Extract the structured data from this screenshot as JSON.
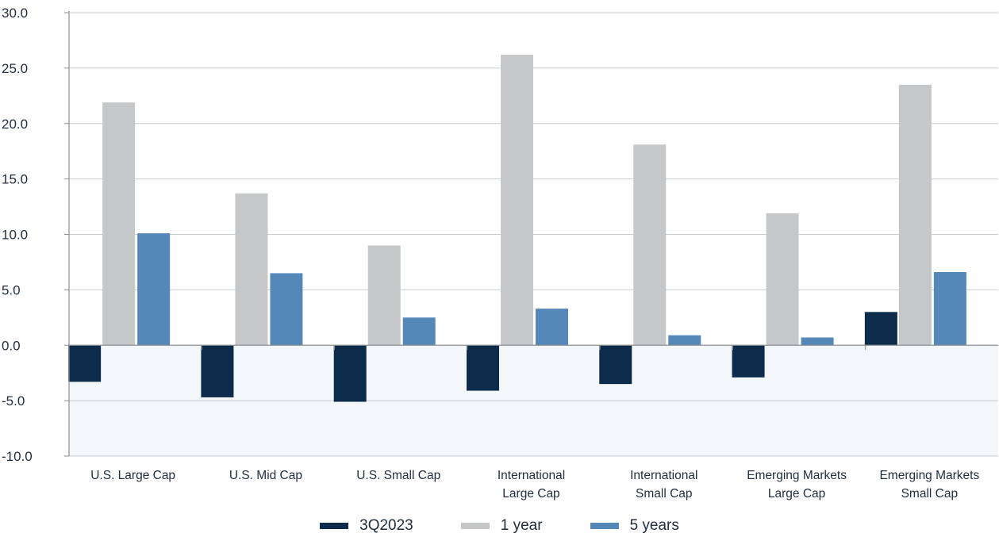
{
  "chart_data": {
    "type": "bar",
    "categories": [
      [
        "U.S. Large Cap"
      ],
      [
        "U.S. Mid Cap"
      ],
      [
        "U.S. Small Cap"
      ],
      [
        "International",
        "Large Cap"
      ],
      [
        "International",
        "Small Cap"
      ],
      [
        "Emerging Markets",
        "Large Cap"
      ],
      [
        "Emerging Markets",
        "Small Cap"
      ]
    ],
    "series": [
      {
        "name": "3Q2023",
        "color": "#0d2b4a",
        "values": [
          -3.3,
          -4.7,
          -5.1,
          -4.1,
          -3.5,
          -2.9,
          3.0
        ]
      },
      {
        "name": "1 year",
        "color": "#c6c7c9",
        "values": [
          21.9,
          13.7,
          9.0,
          26.2,
          18.1,
          11.9,
          23.5
        ]
      },
      {
        "name": "5 years",
        "color": "#5588b8",
        "values": [
          10.1,
          6.5,
          2.5,
          3.3,
          0.9,
          0.7,
          6.6
        ]
      }
    ],
    "yticks": [
      "30.0",
      "25.0",
      "20.0",
      "15.0",
      "10.0",
      "5.0",
      "0.0",
      "-5.0",
      "-10.0"
    ],
    "ylim": [
      -10,
      30
    ],
    "negative_region_color": "#f3f7fa",
    "grid": true,
    "legend_position": "bottom"
  }
}
